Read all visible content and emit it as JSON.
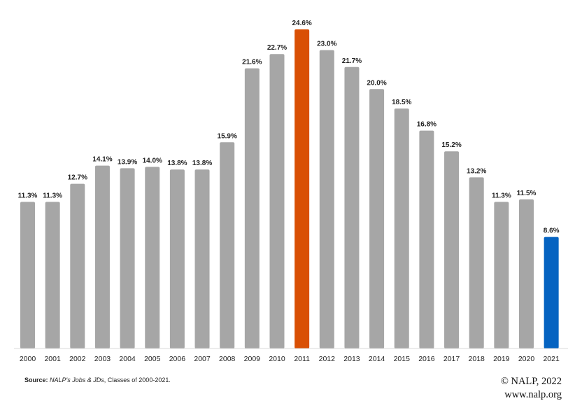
{
  "chart_data": {
    "type": "bar",
    "categories": [
      "2000",
      "2001",
      "2002",
      "2003",
      "2004",
      "2005",
      "2006",
      "2007",
      "2008",
      "2009",
      "2010",
      "2011",
      "2012",
      "2013",
      "2014",
      "2015",
      "2016",
      "2017",
      "2018",
      "2019",
      "2020",
      "2021"
    ],
    "values": [
      11.3,
      11.3,
      12.7,
      14.1,
      13.9,
      14.0,
      13.8,
      13.8,
      15.9,
      21.6,
      22.7,
      24.6,
      23.0,
      21.7,
      20.0,
      18.5,
      16.8,
      15.2,
      13.2,
      11.3,
      11.5,
      8.6
    ],
    "labels": [
      "11.3%",
      "11.3%",
      "12.7%",
      "14.1%",
      "13.9%",
      "14.0%",
      "13.8%",
      "13.8%",
      "15.9%",
      "21.6%",
      "22.7%",
      "24.6%",
      "23.0%",
      "21.7%",
      "20.0%",
      "18.5%",
      "16.8%",
      "15.2%",
      "13.2%",
      "11.3%",
      "11.5%",
      "8.6%"
    ],
    "ylim": [
      0,
      24.6
    ],
    "title": "",
    "xlabel": "",
    "ylabel": "",
    "grid": false,
    "colors": {
      "default": "#a6a6a6",
      "highlight_max": "#d94f04",
      "highlight_latest": "#0563c1",
      "axis": "#d9d9d9"
    },
    "highlight": {
      "2011": "highlight_max",
      "2021": "highlight_latest"
    }
  },
  "footer": {
    "source_label": "Source:",
    "source_title": "NALP's Jobs & JDs",
    "source_rest": ", Classes of 2000-2021.",
    "copyright": "© NALP, 2022",
    "website": "www.nalp.org"
  }
}
